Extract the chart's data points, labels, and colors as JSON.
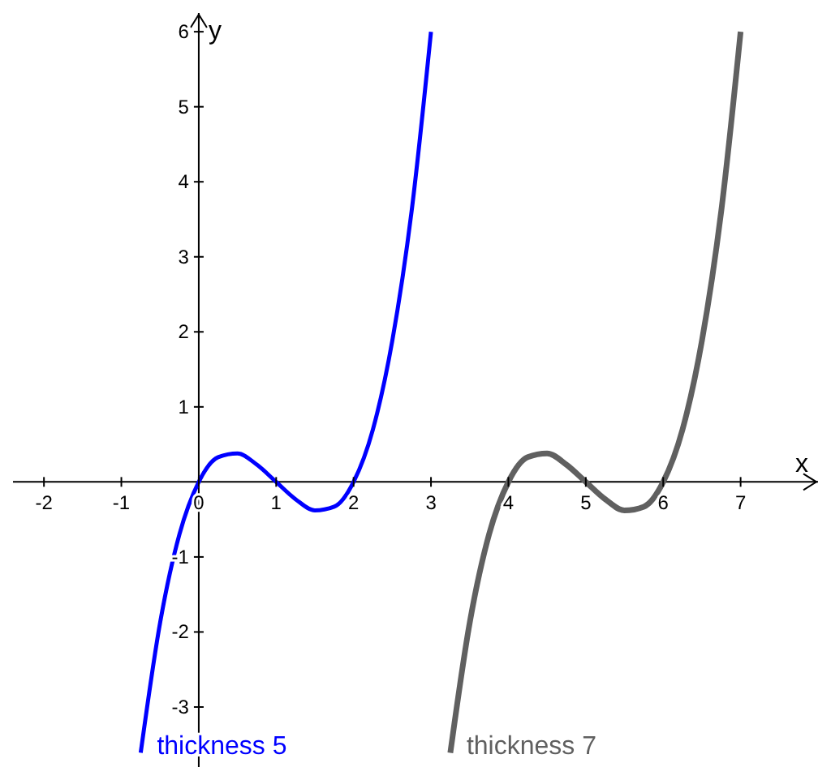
{
  "chart_data": {
    "type": "line",
    "xlabel": "x",
    "ylabel": "y",
    "xlim": [
      -2.4,
      8.0
    ],
    "ylim": [
      -3.8,
      6.25
    ],
    "xticks": [
      -2,
      -1,
      0,
      1,
      2,
      3,
      4,
      5,
      6,
      7
    ],
    "yticks": [
      -3,
      -2,
      -1,
      1,
      2,
      3,
      4,
      5,
      6
    ],
    "marker": "none",
    "line_style": "solid",
    "series": [
      {
        "name": "thickness 5",
        "color": "#0000ff",
        "x": [
          -0.75,
          -0.5,
          -0.25,
          0,
          0.25,
          0.5,
          0.75,
          1,
          1.25,
          1.5,
          1.75,
          2,
          2.25,
          2.5,
          2.75,
          3
        ],
        "values": [
          -3.61,
          -1.88,
          -0.7,
          0,
          0.33,
          0.38,
          0.23,
          0,
          -0.23,
          -0.38,
          -0.33,
          0,
          0.7,
          1.88,
          3.61,
          6
        ]
      },
      {
        "name": "thickness 7",
        "color": "#606060",
        "x": [
          3.25,
          3.5,
          3.75,
          4,
          4.25,
          4.5,
          4.75,
          5,
          5.25,
          5.5,
          5.75,
          6,
          6.25,
          6.5,
          6.75,
          7
        ],
        "values": [
          -3.61,
          -1.88,
          -0.7,
          0,
          0.33,
          0.38,
          0.23,
          0,
          -0.23,
          -0.38,
          -0.33,
          0,
          0.7,
          1.88,
          3.61,
          6
        ]
      }
    ]
  }
}
